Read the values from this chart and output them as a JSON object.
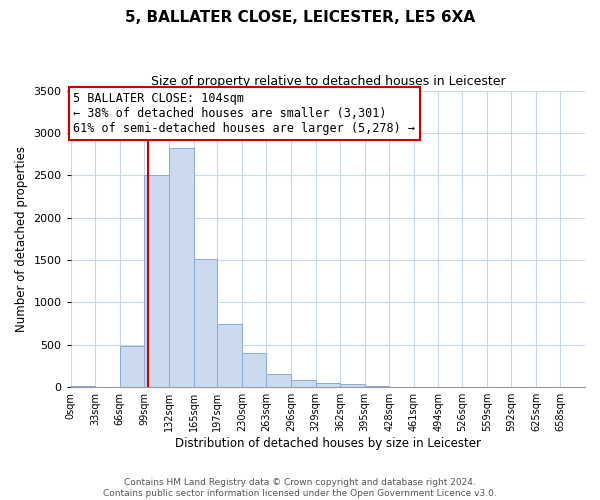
{
  "title": "5, BALLATER CLOSE, LEICESTER, LE5 6XA",
  "subtitle": "Size of property relative to detached houses in Leicester",
  "xlabel": "Distribution of detached houses by size in Leicester",
  "ylabel": "Number of detached properties",
  "bin_labels": [
    "0sqm",
    "33sqm",
    "66sqm",
    "99sqm",
    "132sqm",
    "165sqm",
    "197sqm",
    "230sqm",
    "263sqm",
    "296sqm",
    "329sqm",
    "362sqm",
    "395sqm",
    "428sqm",
    "461sqm",
    "494sqm",
    "526sqm",
    "559sqm",
    "592sqm",
    "625sqm",
    "658sqm"
  ],
  "bin_edges": [
    0,
    33,
    66,
    99,
    132,
    165,
    197,
    230,
    263,
    296,
    329,
    362,
    395,
    428,
    461,
    494,
    526,
    559,
    592,
    625,
    658,
    691
  ],
  "bar_heights": [
    20,
    0,
    490,
    2500,
    2820,
    1510,
    750,
    400,
    150,
    80,
    50,
    40,
    20,
    5,
    0,
    0,
    0,
    0,
    0,
    0,
    0
  ],
  "bar_color": "#ccdaf0",
  "bar_edge_color": "#8aaad0",
  "property_size": 104,
  "vline_color": "#cc0000",
  "ylim": [
    0,
    3500
  ],
  "yticks": [
    0,
    500,
    1000,
    1500,
    2000,
    2500,
    3000,
    3500
  ],
  "annotation_line1": "5 BALLATER CLOSE: 104sqm",
  "annotation_line2": "← 38% of detached houses are smaller (3,301)",
  "annotation_line3": "61% of semi-detached houses are larger (5,278) →",
  "footer_line1": "Contains HM Land Registry data © Crown copyright and database right 2024.",
  "footer_line2": "Contains public sector information licensed under the Open Government Licence v3.0.",
  "bg_color": "#ffffff",
  "grid_color": "#c8d8e8",
  "annotation_box_color": "#ffffff",
  "annotation_box_edge": "#cc0000"
}
